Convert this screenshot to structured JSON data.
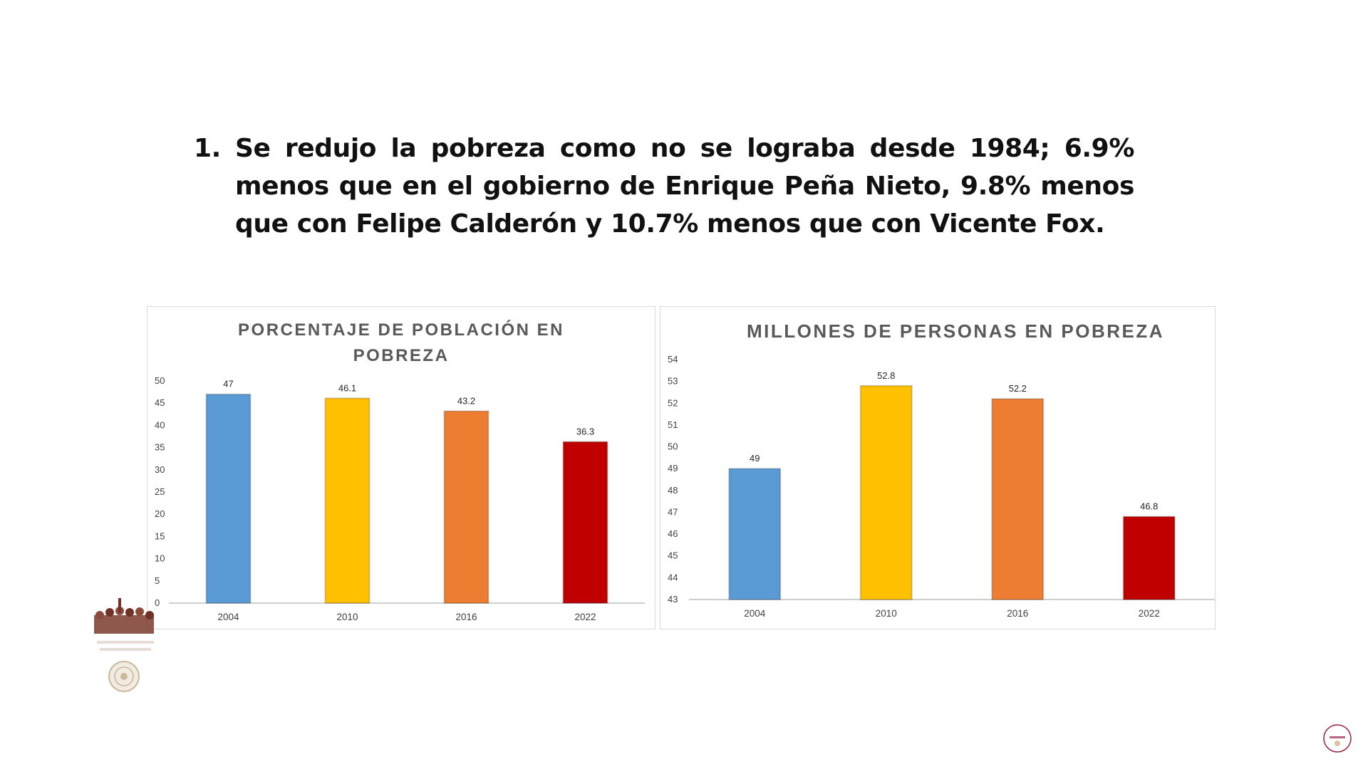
{
  "heading": {
    "number": "1.",
    "text": "Se redujo la pobreza como no se lograba desde 1984; 6.9% menos que en el gobierno de Enrique Peña Nieto, 9.8% menos que con Felipe Calderón y 10.7% menos que con Vicente Fox."
  },
  "chart_data": [
    {
      "type": "bar",
      "title_lines": [
        "PORCENTAJE DE POBLACIÓN EN",
        "POBREZA"
      ],
      "categories": [
        "2004",
        "2010",
        "2016",
        "2022"
      ],
      "values": [
        47,
        46.1,
        43.2,
        36.3
      ],
      "data_labels": [
        "47",
        "46.1",
        "43.2",
        "36.3"
      ],
      "ylim": [
        0,
        50
      ],
      "yticks": [
        0,
        5,
        10,
        15,
        20,
        25,
        30,
        35,
        40,
        45,
        50
      ],
      "bar_colors": [
        "#5b9bd5",
        "#ffc000",
        "#ed7d31",
        "#c00000"
      ],
      "grid": false,
      "legend": "none"
    },
    {
      "type": "bar",
      "title_lines": [
        "MILLONES DE PERSONAS EN POBREZA"
      ],
      "categories": [
        "2004",
        "2010",
        "2016",
        "2022"
      ],
      "values": [
        49,
        52.8,
        52.2,
        46.8
      ],
      "data_labels": [
        "49",
        "52.8",
        "52.2",
        "46.8"
      ],
      "ylim": [
        43,
        54
      ],
      "yticks": [
        43,
        44,
        45,
        46,
        47,
        48,
        49,
        50,
        51,
        52,
        53,
        54
      ],
      "bar_colors": [
        "#5b9bd5",
        "#ffc000",
        "#ed7d31",
        "#c00000"
      ],
      "grid": false,
      "legend": "none"
    }
  ],
  "logos": {
    "left": "government-mural-seal-icon",
    "right": "mexico-round-logo-icon"
  }
}
